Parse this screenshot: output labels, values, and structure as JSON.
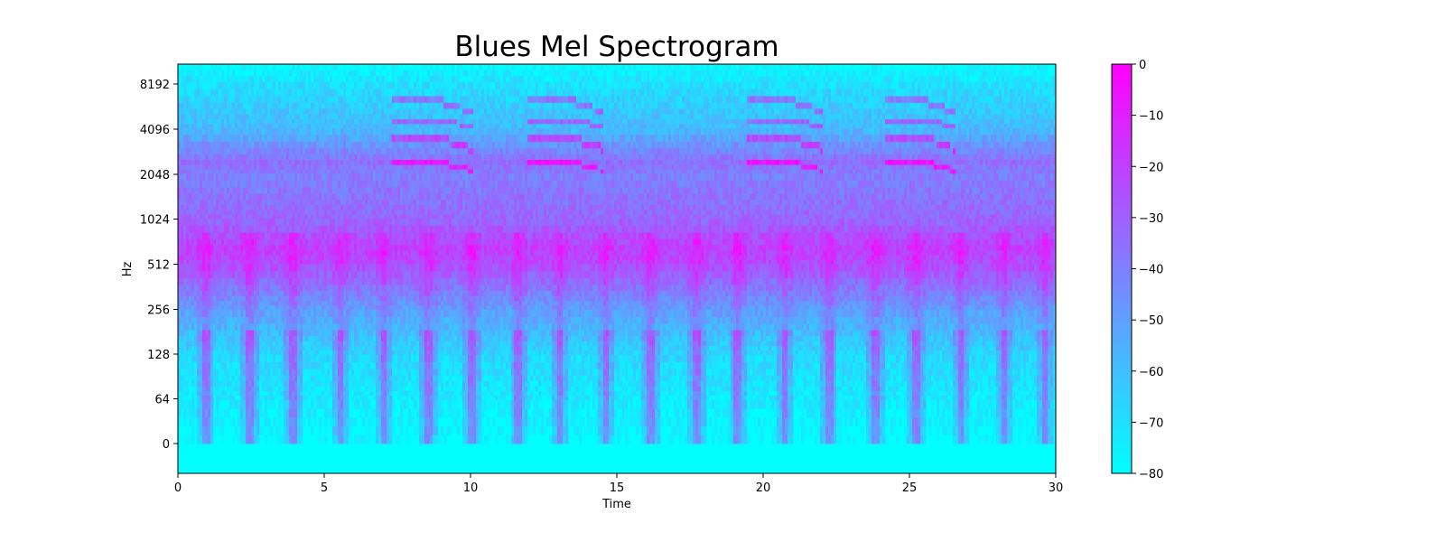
{
  "chart_data": {
    "type": "heatmap",
    "title": "Blues Mel Spectrogram",
    "xlabel": "Time",
    "ylabel": "Hz",
    "xlim": [
      0,
      30
    ],
    "x_ticks": [
      0,
      5,
      10,
      15,
      20,
      25,
      30
    ],
    "y_scale": "symlog",
    "y_ticks": [
      0,
      64,
      128,
      256,
      512,
      1024,
      2048,
      4096,
      8192
    ],
    "colormap": "cool",
    "colormap_range": [
      "#00ffff",
      "#ff00ff"
    ],
    "colorbar": {
      "range": [
        -80,
        0
      ],
      "ticks": [
        0,
        -10,
        -20,
        -30,
        -40,
        -50,
        -60,
        -70,
        -80
      ]
    },
    "band_profile": [
      {
        "hz": 0,
        "db": -80
      },
      {
        "hz": 64,
        "db": -74
      },
      {
        "hz": 128,
        "db": -68
      },
      {
        "hz": 256,
        "db": -50
      },
      {
        "hz": 512,
        "db": -24
      },
      {
        "hz": 700,
        "db": -20
      },
      {
        "hz": 1024,
        "db": -32
      },
      {
        "hz": 2048,
        "db": -40
      },
      {
        "hz": 2600,
        "db": -34
      },
      {
        "hz": 4096,
        "db": -58
      },
      {
        "hz": 8192,
        "db": -70
      },
      {
        "hz": 11025,
        "db": -80
      }
    ],
    "harmonic_events": [
      {
        "start": 7.3,
        "end": 10.0
      },
      {
        "start": 11.9,
        "end": 14.5
      },
      {
        "start": 19.4,
        "end": 22.0
      },
      {
        "start": 24.1,
        "end": 26.5
      }
    ],
    "onset_times": [
      0.9,
      2.4,
      3.9,
      5.5,
      7.0,
      8.5,
      10.0,
      11.6,
      13.0,
      14.6,
      16.1,
      17.7,
      19.1,
      20.7,
      22.2,
      23.8,
      25.2,
      26.7,
      28.2,
      29.6
    ]
  }
}
